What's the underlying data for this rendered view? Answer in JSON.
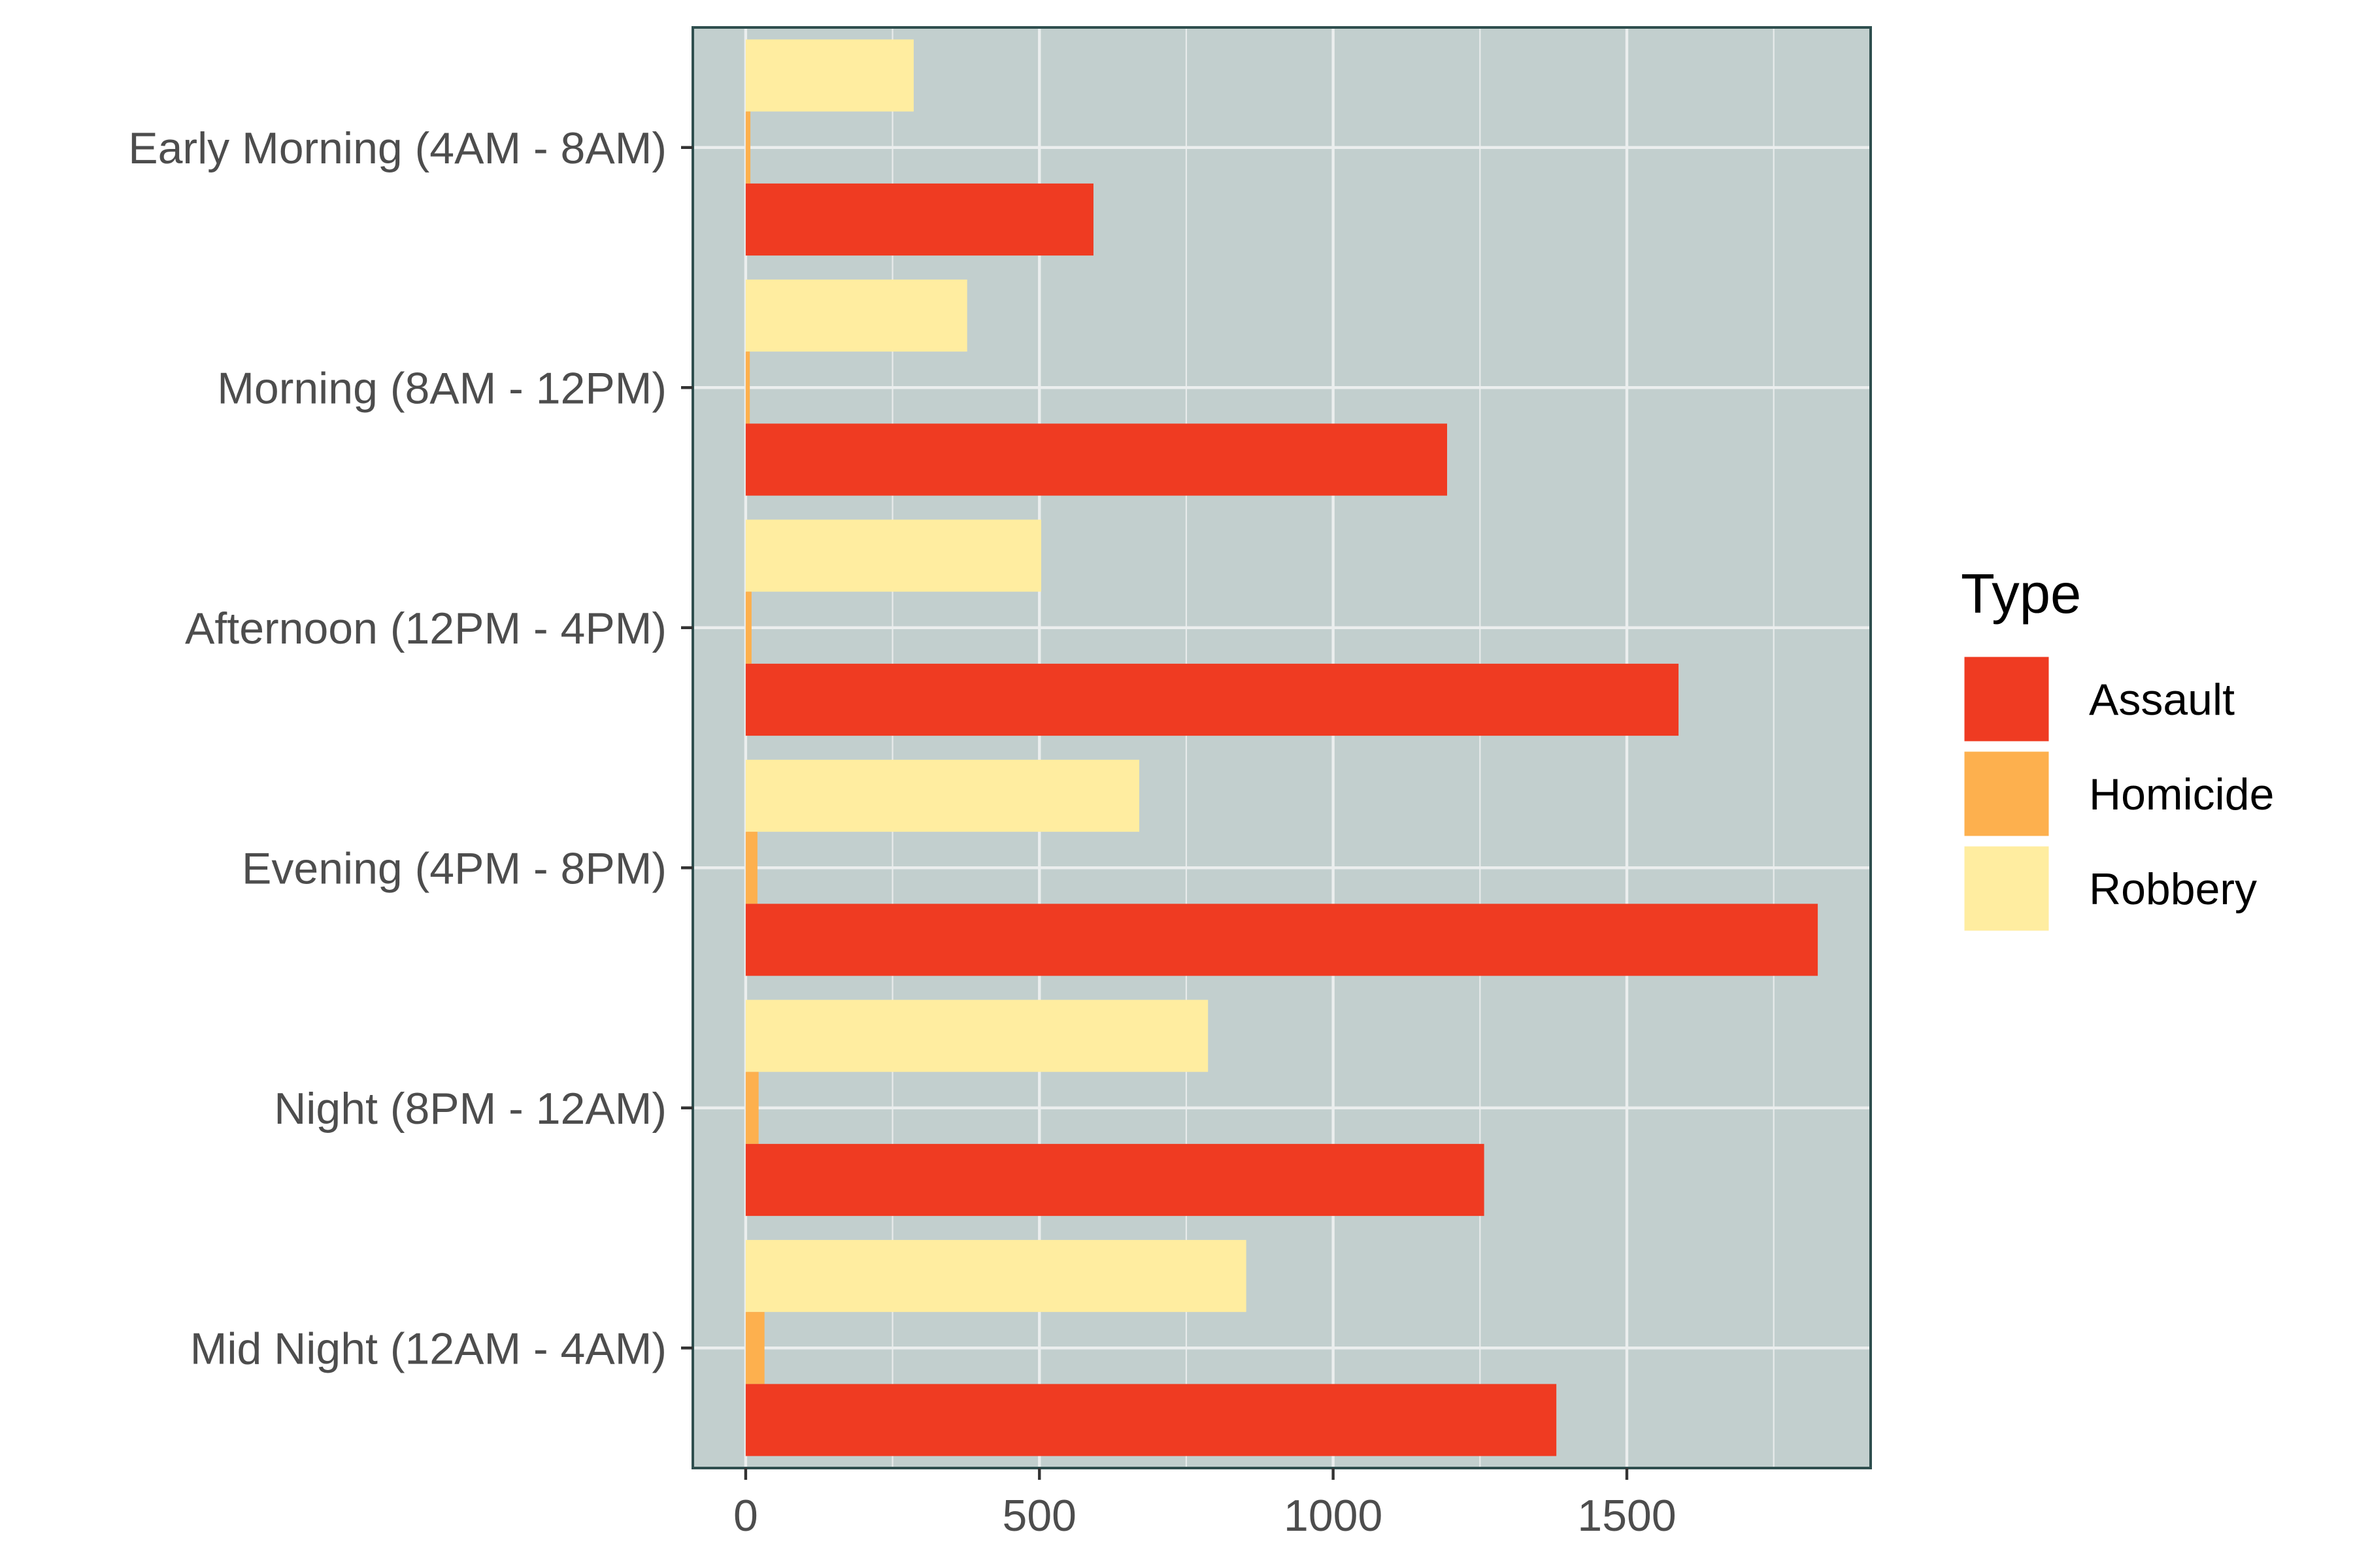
{
  "chart_data": {
    "type": "bar",
    "orientation": "horizontal",
    "categories": [
      "Early Morning (4AM - 8AM)",
      "Morning (8AM - 12PM)",
      "Afternoon (12PM - 4PM)",
      "Evening (4PM - 8PM)",
      "Night (8PM - 12AM)",
      "Mid Night (12AM - 4AM)"
    ],
    "series": [
      {
        "name": "Assault",
        "color": "#EF3B22",
        "values": [
          592,
          1194,
          1588,
          1825,
          1257,
          1380
        ]
      },
      {
        "name": "Homicide",
        "color": "#FDB04E",
        "values": [
          8,
          7,
          10,
          20,
          22,
          32
        ]
      },
      {
        "name": "Robbery",
        "color": "#FFEDA0",
        "values": [
          286,
          377,
          503,
          670,
          787,
          852
        ]
      }
    ],
    "xlim": [
      -90,
      1915
    ],
    "xticks": [
      0,
      500,
      1000,
      1500
    ],
    "xlabel": "",
    "ylabel": "",
    "grid": true,
    "panel_background": "#C2CFCE",
    "panel_border": "#2F4F4F",
    "legend": {
      "title": "Type",
      "position": "right"
    }
  }
}
